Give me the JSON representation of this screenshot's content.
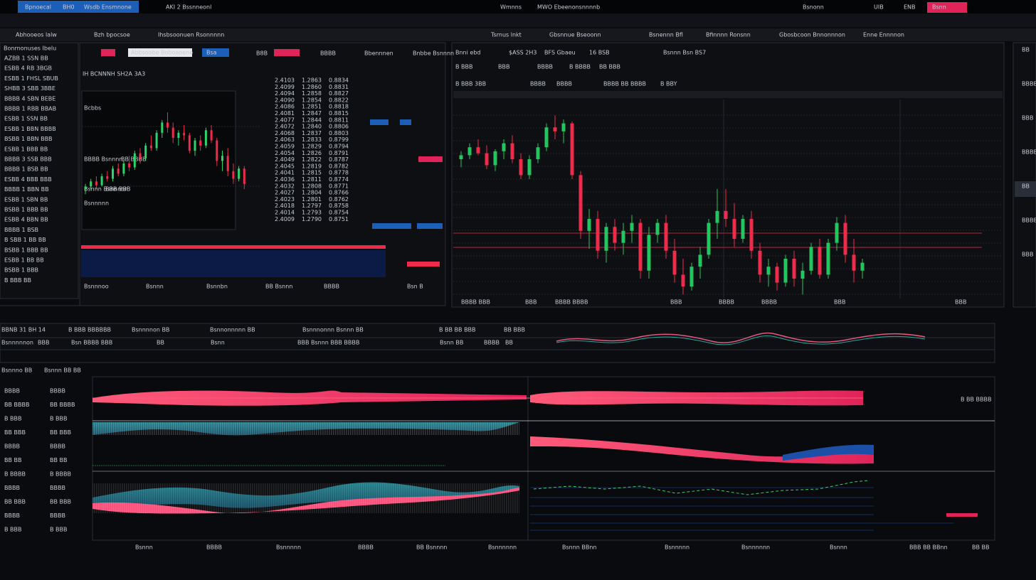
{
  "top_bar": {
    "items": [
      "Bpnoecal",
      "BH0",
      "Wsdb Ensmnone",
      "AKI 2 Bssnneonl",
      "Wmnns",
      "MWO Ebeenonsnnnnb",
      "Bsnonn",
      "UIB",
      "ENB",
      "Bsnn"
    ]
  },
  "toolbar": {
    "items": [
      "Abhooeos lalw",
      "Bzh bpocsoe",
      "Ihsbsoonuen Rsonnnnn",
      "Tsrnus lnkt",
      "Gbsnnue Bseoonn",
      "Bsnennn Bfl",
      "Bfinnnn Ronsnn",
      "Gbosbcoon Bnnonnnon",
      "Enne Ennnnon"
    ]
  },
  "watchlist": {
    "title": "Bonrnonuses Ibelu",
    "rows": [
      {
        "text": "AZBB 1 SSN BB",
        "color": "#2fd36b"
      },
      {
        "text": "ESBB 4 RB 3BGB",
        "color": "#2fd36b"
      },
      {
        "text": "ESBB 1 FHSL SBUB",
        "color": "#2fd36b"
      },
      {
        "text": "SHBB 3 SBB 3BBE",
        "color": "#e8eaee"
      },
      {
        "text": "BBBB 4 SBN BEBE",
        "color": "#2fd36b"
      },
      {
        "text": "BBBB 1 RBB BBAB",
        "color": "#2fd36b"
      },
      {
        "text": "ESBB 1 SSN BB",
        "color": "#ef2b4b"
      },
      {
        "text": "ESBB 1 BBN BBBB",
        "color": "#2fd36b"
      },
      {
        "text": "BSBB 1 BBN BBB",
        "color": "#e8eaee"
      },
      {
        "text": "ESBB 1 BBB BB",
        "color": "#ef2b4b"
      },
      {
        "text": "BBBB 3 SSB BBB",
        "color": "#2fd36b"
      },
      {
        "text": "BBBB 1 BSB BB",
        "color": "#ef2b4b"
      },
      {
        "text": "ESBB 4 BBB BBB",
        "color": "#ef2b4b"
      },
      {
        "text": "BBBB 1 BBN BB",
        "color": "#2fd36b"
      },
      {
        "text": "ESBB 1 SBN BB",
        "color": "#ef2b4b"
      },
      {
        "text": "BSBB 1 BBB BB",
        "color": "#ef2b4b"
      },
      {
        "text": "ESBB 4 BBN BB",
        "color": "#e8eaee"
      },
      {
        "text": "BBBB 1 BSB",
        "color": "#e8eaee"
      },
      {
        "text": "B SBB 1 BB BB",
        "color": "#ef2b4b"
      },
      {
        "text": "BSBB 1 BBB BB",
        "color": "#2fd36b"
      },
      {
        "text": "ESBB 1 BB BB",
        "color": "#ef2b4b"
      },
      {
        "text": "BSBB 1 BBB",
        "color": "#2fd36b"
      },
      {
        "text": "B BBB BB",
        "color": "#ef2b4b"
      }
    ]
  },
  "center_panel": {
    "title": "IH BCNNNH SH2A 3A3",
    "search": "Abbsoobe Boboaoene",
    "button": "Bsa",
    "tabs": [
      "B8B",
      "BBBB",
      "Bbennnen",
      "Bnbbe Bsnnnn"
    ],
    "labels": [
      "Bcbbs",
      "BBBB Bsnnnn",
      "BB BBBB",
      "Bsnnn Bsnnnon",
      "BBB BBB",
      "Bsnnnnn"
    ],
    "footer": [
      "Bsnnnoo",
      "Bsnnn",
      "Bsnnbn",
      "BB Bsnnn",
      "BBBB",
      "Bsn B"
    ]
  },
  "order_book": {
    "ask_color": "#ef2b4b",
    "bid_color": "#2fd36b",
    "side_color": "#2f7fe8",
    "asks": [
      [
        "2.4103",
        "1.2863",
        "0.8834"
      ],
      [
        "2.4099",
        "1.2860",
        "0.8831"
      ],
      [
        "2.4094",
        "1.2858",
        "0.8827"
      ],
      [
        "2.4090",
        "1.2854",
        "0.8822"
      ],
      [
        "2.4086",
        "1.2851",
        "0.8818"
      ],
      [
        "2.4081",
        "1.2847",
        "0.8815"
      ],
      [
        "2.4077",
        "1.2844",
        "0.8811"
      ],
      [
        "2.4072",
        "1.2840",
        "0.8806"
      ],
      [
        "2.4068",
        "1.2837",
        "0.8803"
      ],
      [
        "2.4063",
        "1.2833",
        "0.8799"
      ],
      [
        "2.4059",
        "1.2829",
        "0.8794"
      ]
    ],
    "bids": [
      [
        "2.4054",
        "1.2826",
        "0.8791"
      ],
      [
        "2.4049",
        "1.2822",
        "0.8787"
      ],
      [
        "2.4045",
        "1.2819",
        "0.8782"
      ],
      [
        "2.4041",
        "1.2815",
        "0.8778"
      ],
      [
        "2.4036",
        "1.2811",
        "0.8774"
      ],
      [
        "2.4032",
        "1.2808",
        "0.8771"
      ],
      [
        "2.4027",
        "1.2804",
        "0.8766"
      ],
      [
        "2.4023",
        "1.2801",
        "0.8762"
      ],
      [
        "2.4018",
        "1.2797",
        "0.8758"
      ],
      [
        "2.4014",
        "1.2793",
        "0.8754"
      ],
      [
        "2.4009",
        "1.2790",
        "0.8751"
      ]
    ]
  },
  "mini_chart": {
    "type": "candlestick",
    "ylim": [
      0,
      100
    ],
    "up_color": "#2fd36b",
    "down_color": "#ef2b4b",
    "candles": [
      [
        30,
        34,
        26,
        32
      ],
      [
        32,
        38,
        30,
        36
      ],
      [
        36,
        40,
        30,
        33
      ],
      [
        33,
        42,
        32,
        40
      ],
      [
        40,
        44,
        36,
        38
      ],
      [
        38,
        48,
        36,
        46
      ],
      [
        46,
        50,
        40,
        42
      ],
      [
        42,
        52,
        40,
        50
      ],
      [
        50,
        56,
        44,
        47
      ],
      [
        47,
        60,
        45,
        58
      ],
      [
        58,
        62,
        50,
        54
      ],
      [
        54,
        66,
        52,
        64
      ],
      [
        64,
        72,
        60,
        62
      ],
      [
        62,
        76,
        60,
        74
      ],
      [
        74,
        84,
        70,
        82
      ],
      [
        82,
        90,
        74,
        78
      ],
      [
        78,
        82,
        66,
        70
      ],
      [
        70,
        76,
        64,
        74
      ],
      [
        74,
        80,
        68,
        72
      ],
      [
        72,
        74,
        58,
        60
      ],
      [
        60,
        70,
        56,
        68
      ],
      [
        68,
        72,
        60,
        64
      ],
      [
        64,
        78,
        62,
        76
      ],
      [
        76,
        80,
        66,
        68
      ],
      [
        68,
        70,
        48,
        52
      ],
      [
        52,
        60,
        44,
        56
      ],
      [
        56,
        62,
        40,
        44
      ],
      [
        44,
        50,
        34,
        38
      ],
      [
        38,
        48,
        36,
        46
      ],
      [
        46,
        48,
        30,
        34
      ]
    ]
  },
  "main_chart": {
    "type": "candlestick",
    "ylim": [
      0,
      100
    ],
    "up_color": "#22c55e",
    "down_color": "#ef2b4b",
    "header": [
      "Bnni ebd",
      "$ASS 2H3",
      "BFS Gbaeu",
      "16 BSB",
      "Bsnnn Bsn BS7"
    ],
    "subheader": [
      "B BBB",
      "BBB",
      "BBBB",
      "B BBBB",
      "BB BBB"
    ],
    "legend": [
      "B BBB 3BB",
      "BBBB",
      "BBBB",
      "BBBB BB BBBB",
      "B BBY"
    ],
    "x_labels": [
      "BBBB BBB",
      "BBB",
      "BBBB BBBB",
      "BBB",
      "BBBB",
      "BBBB",
      "BBB",
      "BBB"
    ],
    "candles": [
      [
        70,
        74,
        66,
        72
      ],
      [
        72,
        78,
        70,
        76
      ],
      [
        76,
        80,
        72,
        73
      ],
      [
        73,
        77,
        65,
        67
      ],
      [
        67,
        75,
        64,
        74
      ],
      [
        74,
        80,
        70,
        78
      ],
      [
        78,
        82,
        68,
        70
      ],
      [
        70,
        73,
        60,
        62
      ],
      [
        62,
        72,
        60,
        70
      ],
      [
        70,
        78,
        68,
        76
      ],
      [
        76,
        88,
        74,
        86
      ],
      [
        86,
        92,
        80,
        84
      ],
      [
        84,
        90,
        78,
        88
      ],
      [
        88,
        89,
        60,
        62
      ],
      [
        62,
        64,
        30,
        34
      ],
      [
        34,
        45,
        25,
        40
      ],
      [
        40,
        44,
        20,
        24
      ],
      [
        24,
        38,
        18,
        36
      ],
      [
        36,
        40,
        24,
        28
      ],
      [
        28,
        38,
        22,
        34
      ],
      [
        34,
        42,
        28,
        38
      ],
      [
        38,
        40,
        10,
        14
      ],
      [
        14,
        36,
        10,
        32
      ],
      [
        32,
        40,
        28,
        38
      ],
      [
        38,
        42,
        20,
        24
      ],
      [
        24,
        30,
        8,
        12
      ],
      [
        12,
        20,
        2,
        6
      ],
      [
        6,
        18,
        4,
        16
      ],
      [
        16,
        26,
        10,
        22
      ],
      [
        22,
        40,
        20,
        38
      ],
      [
        38,
        55,
        30,
        44
      ],
      [
        44,
        55,
        36,
        40
      ],
      [
        40,
        48,
        26,
        30
      ],
      [
        30,
        42,
        28,
        40
      ],
      [
        40,
        44,
        20,
        24
      ],
      [
        24,
        28,
        8,
        12
      ],
      [
        12,
        20,
        6,
        16
      ],
      [
        16,
        18,
        4,
        8
      ],
      [
        8,
        22,
        6,
        20
      ],
      [
        20,
        24,
        6,
        10
      ],
      [
        10,
        18,
        2,
        14
      ],
      [
        14,
        28,
        12,
        26
      ],
      [
        26,
        30,
        10,
        12
      ],
      [
        12,
        30,
        10,
        28
      ],
      [
        28,
        41,
        24,
        38
      ],
      [
        38,
        42,
        18,
        22
      ],
      [
        22,
        30,
        8,
        14
      ],
      [
        14,
        20,
        10,
        18
      ]
    ]
  },
  "info_rows": [
    [
      "BBNB 31 BH 14",
      "B BBB BBBBBB",
      "Bsnnnnon BB",
      "Bsnnonnnnn BB",
      "Bsnnnonnn Bsnnn BB",
      "B BB BB BBB",
      "BB BBB"
    ],
    [
      "Bsnnnnnon",
      "BBB",
      "Bsn BBBB BBB",
      "BB",
      "Bsnn",
      "BBB Bsnnn BBB BBBB",
      "Bsnn BB",
      "BBBB",
      "BB"
    ]
  ],
  "bottom_panel": {
    "title": "Bsnnno BB",
    "subtitle": "Bsnnn BB BB",
    "value": "B BB BBBB",
    "labels": [
      "BBBB",
      "BB BBBB",
      "B BBB",
      "BB BBB",
      "BBBB",
      "BB BB",
      "B BBBB",
      "BBBB",
      "BB BBB",
      "BBBB",
      "B BBB"
    ],
    "x_labels": [
      "Bsnnn",
      "BBBB",
      "Bsnnnnn",
      "BBBB",
      "BB Bsnnnn",
      "Bsnnnnnn",
      "Bsnnn BBnn",
      "Bsnnnnn",
      "Bsnnnnnn",
      "Bsnnn",
      "BBB BB BBnn",
      "BB BB"
    ]
  },
  "side_panel": {
    "items": [
      "BB",
      "BBBB",
      "BBB",
      "BBBB",
      "BB",
      "BBBB",
      "BBB"
    ]
  }
}
